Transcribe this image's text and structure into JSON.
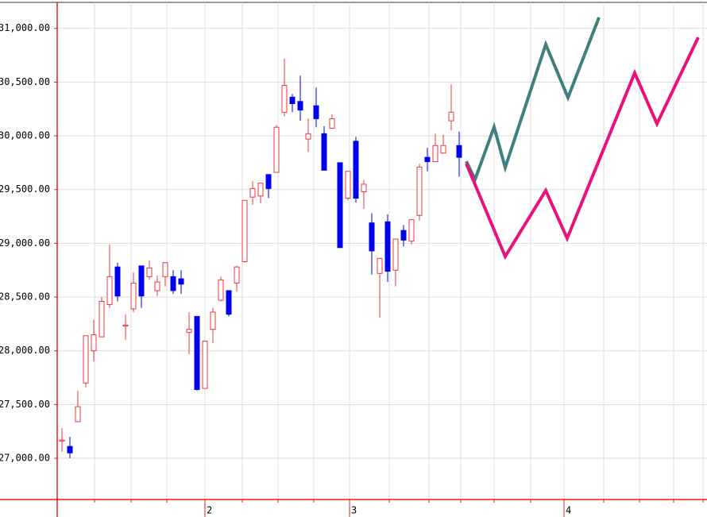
{
  "chart_data": {
    "type": "candlestick",
    "up_color": "#e8383d",
    "down_color": "#0000ee",
    "grid": true,
    "ylim": [
      26616,
      31242
    ],
    "yticks": [
      {
        "value": 27000,
        "label": "27,000.00"
      },
      {
        "value": 27500,
        "label": "27,500.00"
      },
      {
        "value": 28000,
        "label": "28,000.00"
      },
      {
        "value": 28500,
        "label": "28,500.00"
      },
      {
        "value": 29000,
        "label": "29,000.00"
      },
      {
        "value": 29500,
        "label": "29,500.00"
      },
      {
        "value": 30000,
        "label": "30,000.00"
      },
      {
        "value": 30500,
        "label": "30,500.00"
      },
      {
        "value": 31000,
        "label": "31,000.00"
      }
    ],
    "xlim": [
      -0.6,
      81.2
    ],
    "xticks": [
      {
        "value": 18,
        "label": "2"
      },
      {
        "value": 36.2,
        "label": "3"
      },
      {
        "value": 63.2,
        "label": "4"
      }
    ],
    "xgrid": [
      4.1,
      8.7,
      13.2,
      22.7,
      27.2,
      31.7,
      41.2,
      46.2,
      50.2,
      54.4,
      59,
      68.2,
      72.7,
      77,
      80.7
    ],
    "x": [
      0,
      1,
      2,
      3,
      4,
      5,
      6,
      7,
      8,
      9,
      10,
      11,
      12,
      13,
      14,
      15,
      16,
      17,
      18,
      19,
      20,
      21,
      22,
      23,
      24,
      25,
      26,
      27,
      28,
      29,
      30,
      31,
      32,
      33,
      34,
      35,
      36,
      37,
      38,
      39,
      40,
      41,
      42,
      43,
      44,
      45,
      46,
      47,
      48,
      49,
      50
    ],
    "open": [
      27160,
      27110,
      27340,
      27700,
      28000,
      28130,
      28430,
      28780,
      28230,
      28390,
      28790,
      28690,
      28560,
      28690,
      28690,
      28670,
      28170,
      28320,
      27650,
      28200,
      28470,
      28560,
      28630,
      28830,
      29430,
      29440,
      29640,
      29660,
      30220,
      30360,
      30320,
      29970,
      30280,
      30020,
      30070,
      29750,
      29420,
      29950,
      29480,
      29190,
      28720,
      29200,
      28750,
      29120,
      29020,
      29260,
      29800,
      29760,
      29840,
      30140,
      29910
    ],
    "high": [
      27280,
      27200,
      27630,
      28140,
      28290,
      28500,
      28990,
      28820,
      28340,
      28730,
      28790,
      28840,
      28700,
      28820,
      28750,
      28750,
      28360,
      28320,
      28090,
      28400,
      28690,
      28560,
      28790,
      29400,
      29580,
      29560,
      29640,
      30100,
      30720,
      30390,
      30560,
      30160,
      30450,
      30090,
      30200,
      29750,
      29670,
      29990,
      29590,
      29280,
      28860,
      29270,
      29040,
      29170,
      29220,
      29740,
      29890,
      30020,
      30010,
      30480,
      30040
    ],
    "low": [
      27060,
      27000,
      27340,
      27660,
      27900,
      28130,
      28400,
      28460,
      28100,
      28360,
      28400,
      28660,
      28510,
      28600,
      28530,
      28530,
      27970,
      27630,
      27650,
      28070,
      28460,
      28320,
      28550,
      28820,
      29360,
      29370,
      29420,
      29660,
      30180,
      30220,
      30140,
      29850,
      30080,
      29680,
      30070,
      28960,
      29400,
      29380,
      29320,
      28710,
      28310,
      28640,
      28600,
      28970,
      28990,
      29210,
      29670,
      29760,
      29840,
      30050,
      29620
    ],
    "close": [
      27170,
      27050,
      27480,
      28140,
      28150,
      28460,
      28690,
      28510,
      28240,
      28630,
      28510,
      28770,
      28640,
      28820,
      28560,
      28620,
      28200,
      27640,
      28090,
      28360,
      28660,
      28340,
      28780,
      29400,
      29510,
      29560,
      29510,
      30080,
      30470,
      30300,
      30240,
      30020,
      30160,
      29680,
      30160,
      28960,
      29670,
      29420,
      29550,
      28930,
      28860,
      28740,
      29040,
      29030,
      29220,
      29710,
      29760,
      29910,
      29910,
      30220,
      29800
    ],
    "series": [
      {
        "type": "line",
        "color": "#3f7f80",
        "x": [
          50.9,
          52,
          54.4,
          55.8,
          60.9,
          63.7,
          67.6
        ],
        "values": [
          29764,
          29594,
          30082,
          29705,
          30851,
          30356,
          31102
        ]
      },
      {
        "type": "line",
        "color": "#e8127a",
        "x": [
          50.9,
          55.8,
          60.9,
          63.6,
          72.1,
          74.9,
          80.1
        ],
        "values": [
          29742,
          28877,
          29491,
          29047,
          30585,
          30112,
          30917
        ]
      }
    ]
  }
}
